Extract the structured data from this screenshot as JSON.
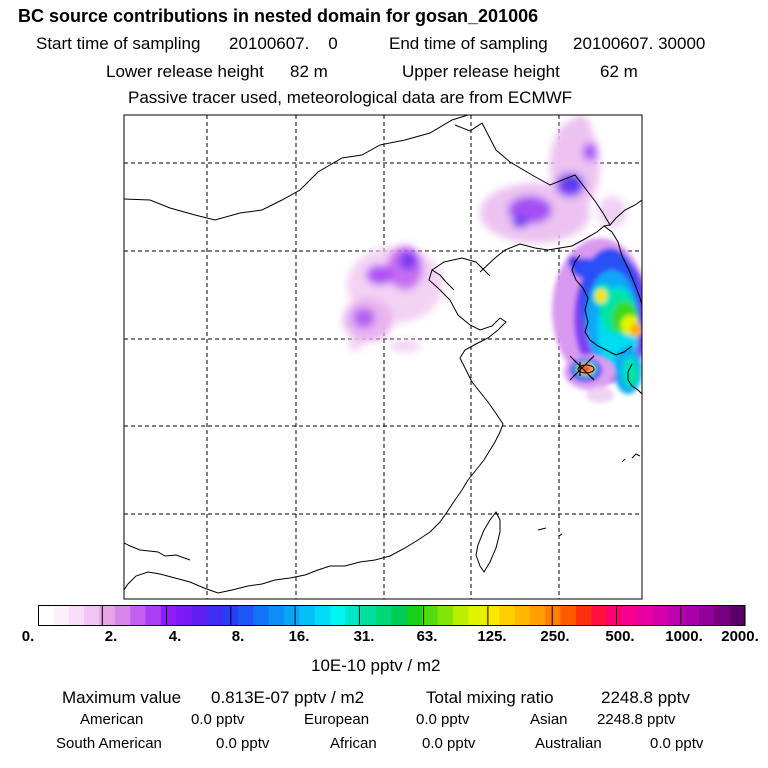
{
  "header": {
    "title": "BC  source contributions in nested domain for gosan_201006",
    "start_label": "Start time of sampling",
    "start_value": "20100607.    0",
    "end_label": "End time of sampling",
    "end_value": "20100607. 30000",
    "lower_label": "Lower release height",
    "lower_value": "82 m",
    "upper_label": "Upper release height",
    "upper_value": "62 m",
    "note": "Passive tracer used, meteorological data are from ECMWF"
  },
  "colorbar": {
    "labels": [
      "0.",
      "2.",
      "4.",
      "8.",
      "16.",
      "31.",
      "63.",
      "125.",
      "250.",
      "500.",
      "1000.",
      "2000."
    ],
    "colors": [
      "#ffffff",
      "#fdf0fd",
      "#f8dcf8",
      "#f2c4f2",
      "#e7a4e7",
      "#d985e9",
      "#c35ff0",
      "#ab3df5",
      "#8f1bf7",
      "#7b19f2",
      "#5f1ff0",
      "#3f2df2",
      "#2a3df6",
      "#1e55f7",
      "#1472f7",
      "#0f8cf7",
      "#0aa6f6",
      "#08bff5",
      "#00dcf5",
      "#00f4f0",
      "#00e8c8",
      "#00e09c",
      "#00d878",
      "#00cc58",
      "#18d018",
      "#52dc10",
      "#84e408",
      "#bcee00",
      "#e2f400",
      "#f8e800",
      "#ffd000",
      "#ffb800",
      "#ffa000",
      "#ff8000",
      "#ff5a00",
      "#ff3010",
      "#ff1040",
      "#ff0070",
      "#f50090",
      "#e800a0",
      "#d400a8",
      "#c000b0",
      "#a800a8",
      "#900098",
      "#780080",
      "#5c0068"
    ],
    "unit": "10E-10 pptv / m2"
  },
  "summary": {
    "max_label": "Maximum value",
    "max_value": "0.813E-07 pptv / m2",
    "total_label": "Total mixing ratio",
    "total_value": "2248.8 pptv",
    "regions": [
      {
        "name": "American",
        "value": "0.0 pptv"
      },
      {
        "name": "European",
        "value": "0.0 pptv"
      },
      {
        "name": "Asian",
        "value": "2248.8 pptv"
      },
      {
        "name": "South American",
        "value": "0.0 pptv"
      },
      {
        "name": "African",
        "value": "0.0 pptv"
      },
      {
        "name": "Australian",
        "value": "0.0 pptv"
      }
    ]
  },
  "plume_colors": {
    "light_pink": "#f0c8f0",
    "mid_pink": "#dd88f0",
    "violet": "#a040f5",
    "blue": "#3d3ef2",
    "cyan": "#08c8f4",
    "teal": "#00e0b0",
    "green": "#30d820",
    "yellow": "#f8e400",
    "orange": "#ff9000",
    "red": "#ff1010",
    "marker": "#000000"
  }
}
